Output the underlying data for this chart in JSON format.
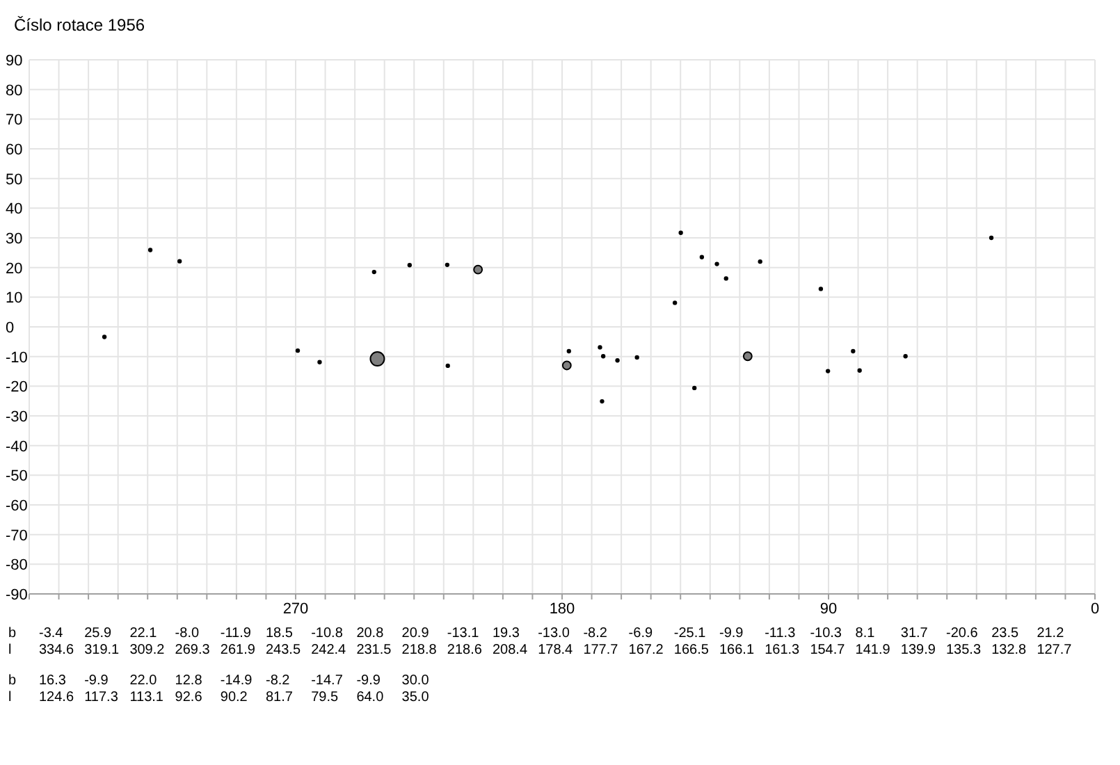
{
  "chart_data": {
    "type": "bubble",
    "title": "Číslo rotace  1956",
    "x": [
      334.6,
      319.1,
      309.2,
      269.3,
      261.9,
      243.5,
      242.4,
      231.5,
      218.8,
      218.6,
      208.4,
      178.4,
      177.7,
      167.2,
      166.5,
      166.1,
      161.3,
      154.7,
      141.9,
      139.9,
      135.3,
      132.8,
      127.7,
      124.6,
      117.3,
      113.1,
      92.6,
      90.2,
      81.7,
      79.5,
      64.0,
      35.0
    ],
    "values": [
      -3.4,
      25.9,
      22.1,
      -8.0,
      -11.9,
      18.5,
      -10.8,
      20.8,
      20.9,
      -13.1,
      19.3,
      -13.0,
      -8.2,
      -6.9,
      -25.1,
      -9.9,
      -11.3,
      -10.3,
      8.1,
      31.7,
      -20.6,
      23.5,
      21.2,
      16.3,
      -9.9,
      22.0,
      12.8,
      -14.9,
      -8.2,
      -14.7,
      -9.9,
      30.0
    ],
    "sizes": [
      0.1,
      0.1,
      0.1,
      0.1,
      0.1,
      0.1,
      1,
      0.1,
      0.1,
      0.1,
      0.35,
      0.35,
      0.1,
      0.1,
      0.1,
      0.1,
      0.1,
      0.1,
      0.1,
      0.1,
      0.1,
      0.1,
      0.1,
      0.1,
      0.35,
      0.1,
      0.1,
      0.1,
      0.1,
      0.1,
      0.1,
      0.1
    ],
    "colors": [
      "#000000",
      "#000000",
      "#000000",
      "#000000",
      "#000000",
      "#000000",
      "#808080",
      "#000000",
      "#000000",
      "#000000",
      "#808080",
      "#808080",
      "#000000",
      "#000000",
      "#000000",
      "#000000",
      "#000000",
      "#000000",
      "#000000",
      "#000000",
      "#000000",
      "#000000",
      "#000000",
      "#000000",
      "#808080",
      "#000000",
      "#000000",
      "#000000",
      "#000000",
      "#000000",
      "#000000",
      "#000000"
    ],
    "xlim": [
      360,
      0
    ],
    "xticks": [
      {
        "value": 360,
        "label": null
      },
      {
        "value": 350,
        "label": null
      },
      {
        "value": 340,
        "label": null
      },
      {
        "value": 330,
        "label": null
      },
      {
        "value": 320,
        "label": null
      },
      {
        "value": 310,
        "label": null
      },
      {
        "value": 300,
        "label": null
      },
      {
        "value": 290,
        "label": null
      },
      {
        "value": 280,
        "label": null
      },
      270,
      {
        "value": 260,
        "label": null
      },
      {
        "value": 250,
        "label": null
      },
      {
        "value": 240,
        "label": null
      },
      {
        "value": 230,
        "label": null
      },
      {
        "value": 220,
        "label": null
      },
      {
        "value": 210,
        "label": null
      },
      {
        "value": 200,
        "label": null
      },
      {
        "value": 190,
        "label": null
      },
      180,
      {
        "value": 170,
        "label": null
      },
      {
        "value": 160,
        "label": null
      },
      {
        "value": 150,
        "label": null
      },
      {
        "value": 140,
        "label": null
      },
      {
        "value": 130,
        "label": null
      },
      {
        "value": 120,
        "label": null
      },
      {
        "value": 110,
        "label": null
      },
      {
        "value": 100,
        "label": null
      },
      90,
      {
        "value": 80,
        "label": null
      },
      {
        "value": 70,
        "label": null
      },
      {
        "value": 60,
        "label": null
      },
      {
        "value": 50,
        "label": null
      },
      {
        "value": 40,
        "label": null
      },
      {
        "value": 30,
        "label": null
      },
      {
        "value": 20,
        "label": null
      },
      {
        "value": 10,
        "label": null
      },
      0
    ],
    "ylim": [
      -90,
      90
    ],
    "yticks": [
      -90,
      -80,
      -70,
      -60,
      -50,
      -40,
      -30,
      -20,
      -10,
      0,
      10,
      20,
      30,
      40,
      50,
      60,
      70,
      80,
      90
    ],
    "grid": true,
    "annotations": [
      "b",
      "l",
      "-3.4",
      "334.6",
      "25.9",
      "319.1",
      "22.1",
      "309.2",
      "-8.0",
      "269.3",
      "-11.9",
      "261.9",
      "18.5",
      "243.5",
      "-10.8",
      "242.4",
      "20.8",
      "231.5",
      "20.9",
      "218.8",
      "-13.1",
      "218.6",
      "19.3",
      "208.4",
      "-13.0",
      "178.4",
      "-8.2",
      "177.7",
      "-6.9",
      "167.2",
      "-25.1",
      "166.5",
      "-9.9",
      "166.1",
      "-11.3",
      "161.3",
      "-10.3",
      "154.7",
      "8.1",
      "141.9",
      "31.7",
      "139.9",
      "-20.6",
      "135.3",
      "23.5",
      "132.8",
      "21.2",
      "127.7",
      "16.3",
      "124.6",
      "-9.9",
      "117.3",
      "22.0",
      "113.1",
      "12.8",
      "92.6",
      "-14.9",
      "90.2",
      "-8.2",
      "81.7",
      "-14.7",
      "79.5",
      "-9.9",
      "64.0",
      "30.0",
      "35.0"
    ]
  }
}
